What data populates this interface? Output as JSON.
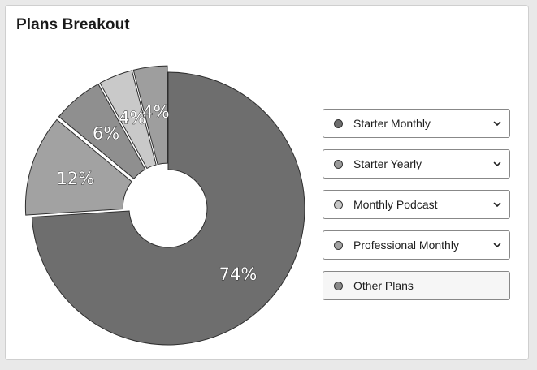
{
  "card": {
    "title": "Plans Breakout"
  },
  "chart_data": {
    "type": "pie",
    "donut": true,
    "categories": [
      "Starter Monthly",
      "Starter Yearly",
      "Monthly Podcast",
      "Professional Monthly",
      "Other Plans"
    ],
    "values": [
      74,
      12,
      6,
      4,
      4
    ],
    "labels": [
      "74%",
      "12%",
      "6%",
      "4%",
      "4%"
    ],
    "colors": [
      "#6e6e6e",
      "#a2a2a2",
      "#8f8f8f",
      "#c9c9c9",
      "#9e9e9e"
    ],
    "legend_position": "right",
    "title": ""
  },
  "legend": {
    "items": [
      {
        "label": "Starter Monthly",
        "color": "#6e6e6e",
        "expandable": true,
        "icon": "chevron-down-icon"
      },
      {
        "label": "Starter Yearly",
        "color": "#9a9a9a",
        "expandable": true,
        "icon": "chevron-down-icon"
      },
      {
        "label": "Monthly Podcast",
        "color": "#c6c6c6",
        "expandable": true,
        "icon": "chevron-down-icon"
      },
      {
        "label": "Professional Monthly",
        "color": "#a3a3a3",
        "expandable": true,
        "icon": "chevron-down-icon"
      },
      {
        "label": "Other Plans",
        "color": "#8a8a8a",
        "expandable": false
      }
    ]
  }
}
